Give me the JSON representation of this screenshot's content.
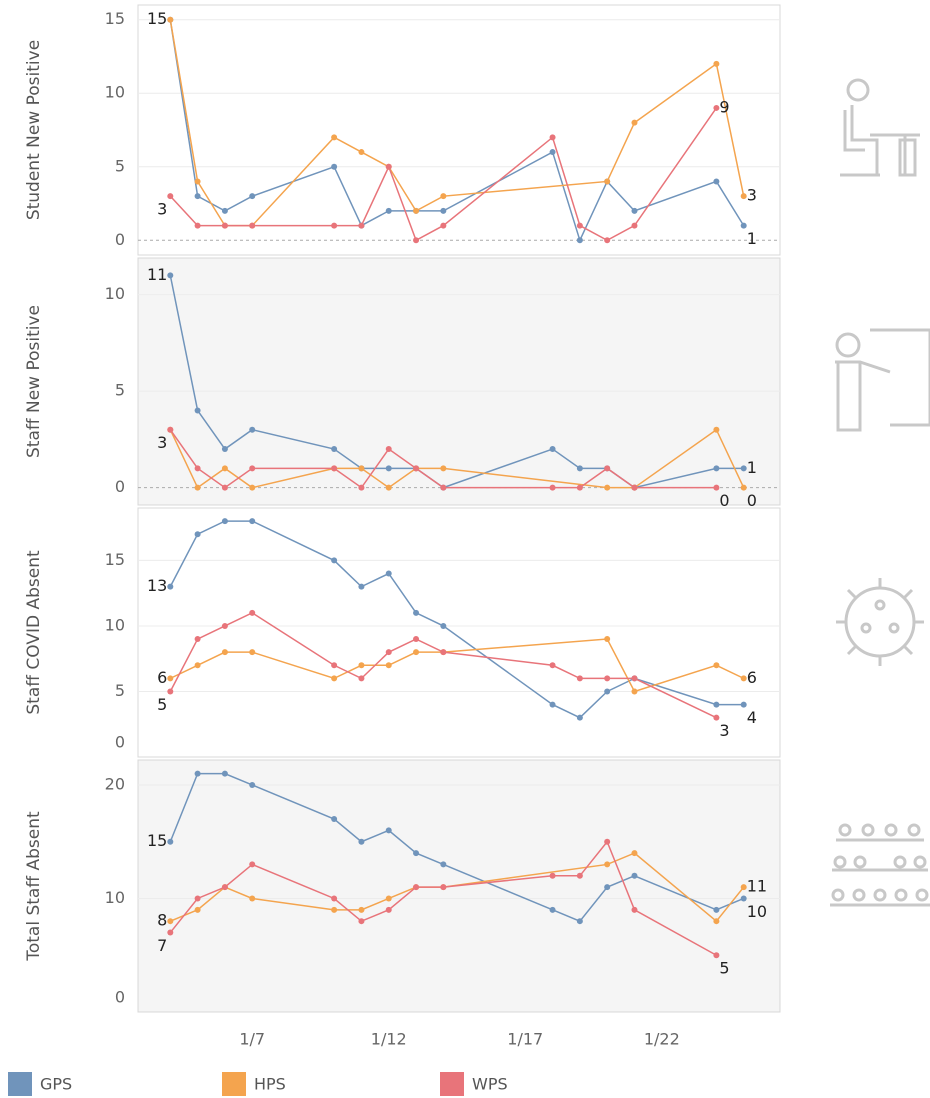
{
  "chart_data": [
    {
      "type": "line",
      "y_label": "Student New Positive",
      "xlim": [
        "1/3",
        "1/26"
      ],
      "ylim": [
        -1,
        16
      ],
      "yticks": [
        0,
        5,
        10,
        15
      ],
      "grid": true,
      "zeroline": true,
      "series": [
        {
          "name": "GPS",
          "color": "#7094bb",
          "x": [
            "1/4",
            "1/5",
            "1/6",
            "1/7",
            "1/10",
            "1/11",
            "1/12",
            "1/13",
            "1/14",
            "1/18",
            "1/19",
            "1/20",
            "1/21",
            "1/24",
            "1/25"
          ],
          "values": [
            15,
            3,
            2,
            3,
            5,
            1,
            2,
            2,
            2,
            6,
            0,
            4,
            2,
            4,
            1
          ],
          "value_labels": [
            "15",
            null,
            null,
            null,
            null,
            null,
            null,
            null,
            null,
            null,
            null,
            null,
            null,
            null,
            "1"
          ]
        },
        {
          "name": "HPS",
          "color": "#f4a44e",
          "x": [
            "1/4",
            "1/5",
            "1/6",
            "1/7",
            "1/10",
            "1/11",
            "1/12",
            "1/13",
            "1/14",
            "1/20",
            "1/21",
            "1/24",
            "1/25"
          ],
          "values": [
            15,
            4,
            1,
            1,
            7,
            6,
            5,
            2,
            3,
            4,
            8,
            12,
            3
          ],
          "value_labels": [
            null,
            null,
            null,
            null,
            null,
            null,
            null,
            null,
            null,
            null,
            null,
            null,
            "3"
          ]
        },
        {
          "name": "WPS",
          "color": "#e8747a",
          "x": [
            "1/4",
            "1/5",
            "1/6",
            "1/7",
            "1/10",
            "1/11",
            "1/12",
            "1/13",
            "1/14",
            "1/18",
            "1/19",
            "1/20",
            "1/21",
            "1/24"
          ],
          "values": [
            3,
            1,
            1,
            1,
            1,
            1,
            5,
            0,
            1,
            7,
            1,
            0,
            1,
            9
          ],
          "value_labels": [
            "3",
            null,
            null,
            null,
            null,
            null,
            null,
            null,
            null,
            null,
            null,
            null,
            null,
            "9"
          ]
        }
      ]
    },
    {
      "type": "line",
      "y_label": "Staff New Positive",
      "xlim": [
        "1/3",
        "1/26"
      ],
      "ylim": [
        -0.9,
        11.9
      ],
      "yticks": [
        0,
        5,
        10
      ],
      "grid": true,
      "zeroline": true,
      "series": [
        {
          "name": "GPS",
          "color": "#7094bb",
          "x": [
            "1/4",
            "1/5",
            "1/6",
            "1/7",
            "1/10",
            "1/11",
            "1/12",
            "1/13",
            "1/14",
            "1/18",
            "1/19",
            "1/20",
            "1/21",
            "1/24",
            "1/25"
          ],
          "values": [
            11,
            4,
            2,
            3,
            2,
            1,
            1,
            1,
            0,
            2,
            1,
            1,
            0,
            1,
            1
          ],
          "value_labels": [
            "11",
            null,
            null,
            null,
            null,
            null,
            null,
            null,
            null,
            null,
            null,
            null,
            null,
            null,
            "1"
          ]
        },
        {
          "name": "HPS",
          "color": "#f4a44e",
          "x": [
            "1/4",
            "1/5",
            "1/6",
            "1/7",
            "1/10",
            "1/11",
            "1/12",
            "1/13",
            "1/14",
            "1/20",
            "1/21",
            "1/24",
            "1/25"
          ],
          "values": [
            3,
            0,
            1,
            0,
            1,
            1,
            0,
            1,
            1,
            0,
            0,
            3,
            0
          ],
          "value_labels": [
            "3",
            null,
            null,
            null,
            null,
            null,
            null,
            null,
            null,
            null,
            null,
            null,
            "0"
          ]
        },
        {
          "name": "WPS",
          "color": "#e8747a",
          "x": [
            "1/4",
            "1/5",
            "1/6",
            "1/7",
            "1/10",
            "1/11",
            "1/12",
            "1/13",
            "1/14",
            "1/18",
            "1/19",
            "1/20",
            "1/21",
            "1/24"
          ],
          "values": [
            3,
            1,
            0,
            1,
            1,
            0,
            2,
            1,
            0,
            0,
            0,
            1,
            0,
            0
          ],
          "value_labels": [
            null,
            null,
            null,
            null,
            null,
            null,
            null,
            null,
            null,
            null,
            null,
            null,
            null,
            "0"
          ]
        }
      ]
    },
    {
      "type": "line",
      "y_label": "Staff COVID Absent",
      "xlim": [
        "1/3",
        "1/26"
      ],
      "ylim": [
        0,
        19
      ],
      "yticks": [
        0,
        5,
        10,
        15
      ],
      "grid": true,
      "zeroline": false,
      "series": [
        {
          "name": "GPS",
          "color": "#7094bb",
          "x": [
            "1/4",
            "1/5",
            "1/6",
            "1/7",
            "1/10",
            "1/11",
            "1/12",
            "1/13",
            "1/14",
            "1/18",
            "1/19",
            "1/20",
            "1/21",
            "1/24",
            "1/25"
          ],
          "values": [
            13,
            17,
            18,
            18,
            15,
            13,
            14,
            11,
            10,
            4,
            3,
            5,
            6,
            4,
            4
          ],
          "value_labels": [
            "13",
            null,
            null,
            null,
            null,
            null,
            null,
            null,
            null,
            null,
            null,
            null,
            null,
            null,
            "4"
          ]
        },
        {
          "name": "HPS",
          "color": "#f4a44e",
          "x": [
            "1/4",
            "1/5",
            "1/6",
            "1/7",
            "1/10",
            "1/11",
            "1/12",
            "1/13",
            "1/14",
            "1/20",
            "1/21",
            "1/24",
            "1/25"
          ],
          "values": [
            6,
            7,
            8,
            8,
            6,
            7,
            7,
            8,
            8,
            9,
            5,
            7,
            6
          ],
          "value_labels": [
            "6",
            null,
            null,
            null,
            null,
            null,
            null,
            null,
            null,
            null,
            null,
            null,
            "6"
          ]
        },
        {
          "name": "WPS",
          "color": "#e8747a",
          "x": [
            "1/4",
            "1/5",
            "1/6",
            "1/7",
            "1/10",
            "1/11",
            "1/12",
            "1/13",
            "1/14",
            "1/18",
            "1/19",
            "1/20",
            "1/21",
            "1/24"
          ],
          "values": [
            5,
            9,
            10,
            11,
            7,
            6,
            8,
            9,
            8,
            7,
            6,
            6,
            6,
            3
          ],
          "value_labels": [
            "5",
            null,
            null,
            null,
            null,
            null,
            null,
            null,
            null,
            null,
            null,
            null,
            null,
            "3"
          ]
        }
      ]
    },
    {
      "type": "line",
      "y_label": "Total Staff Absent",
      "xlim": [
        "1/3",
        "1/26"
      ],
      "ylim": [
        0,
        22.2
      ],
      "yticks": [
        0,
        10,
        20
      ],
      "xticks": [
        "1/7",
        "1/12",
        "1/17",
        "1/22"
      ],
      "grid": true,
      "zeroline": false,
      "series": [
        {
          "name": "GPS",
          "color": "#7094bb",
          "x": [
            "1/4",
            "1/5",
            "1/6",
            "1/7",
            "1/10",
            "1/11",
            "1/12",
            "1/13",
            "1/14",
            "1/18",
            "1/19",
            "1/20",
            "1/21",
            "1/24",
            "1/25"
          ],
          "values": [
            15,
            21,
            21,
            20,
            17,
            15,
            16,
            14,
            13,
            9,
            8,
            11,
            12,
            9,
            10
          ],
          "value_labels": [
            "15",
            null,
            null,
            null,
            null,
            null,
            null,
            null,
            null,
            null,
            null,
            null,
            null,
            null,
            "10"
          ]
        },
        {
          "name": "HPS",
          "color": "#f4a44e",
          "x": [
            "1/4",
            "1/5",
            "1/6",
            "1/7",
            "1/10",
            "1/11",
            "1/12",
            "1/13",
            "1/14",
            "1/20",
            "1/21",
            "1/24",
            "1/25"
          ],
          "values": [
            8,
            9,
            11,
            10,
            9,
            9,
            10,
            11,
            11,
            13,
            14,
            8,
            11
          ],
          "value_labels": [
            "8",
            null,
            null,
            null,
            null,
            null,
            null,
            null,
            null,
            null,
            null,
            null,
            "11"
          ]
        },
        {
          "name": "WPS",
          "color": "#e8747a",
          "x": [
            "1/4",
            "1/5",
            "1/6",
            "1/7",
            "1/10",
            "1/11",
            "1/12",
            "1/13",
            "1/14",
            "1/18",
            "1/19",
            "1/20",
            "1/21",
            "1/24"
          ],
          "values": [
            7,
            10,
            11,
            13,
            10,
            8,
            9,
            11,
            11,
            12,
            12,
            15,
            9,
            5
          ],
          "value_labels": [
            "7",
            null,
            null,
            null,
            null,
            null,
            null,
            null,
            null,
            null,
            null,
            null,
            null,
            "5"
          ]
        }
      ]
    }
  ]
}
